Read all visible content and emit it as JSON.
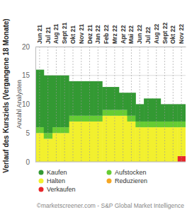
{
  "chart_data": {
    "type": "area",
    "title": "Verlauf des Kursziels (Vergangene 18 Monate)",
    "y_label": "Anzahl Analysten",
    "source": "©marketscreener.com - S&P Global Market Intelligence",
    "categories": [
      "Jun 21",
      "Jul 21",
      "Aug 21",
      "Sept 21",
      "Okt 21",
      "Nov 21",
      "Dez 21",
      "Jan 22",
      "Feb 22",
      "Mrz 22",
      "Apr 22",
      "Mai 22",
      "Jun 22",
      "Jul 22",
      "Aug 22",
      "Sept 22",
      "Okt 22",
      "Nov 22"
    ],
    "series": [
      {
        "name": "Verkaufen",
        "color": "#e8262a",
        "values": [
          0,
          0,
          0,
          0,
          0,
          0,
          0,
          0,
          0,
          0,
          0,
          0,
          0,
          0,
          0,
          0,
          0,
          1
        ]
      },
      {
        "name": "Reduzieren",
        "color": "#f5a623",
        "values": [
          0,
          0,
          0,
          0,
          0,
          0,
          0,
          0,
          0,
          0,
          0,
          0,
          0,
          0,
          0,
          0,
          0,
          0
        ]
      },
      {
        "name": "Halten",
        "color": "#f2f02e",
        "values": [
          5,
          4,
          5,
          5,
          7,
          7,
          7,
          7,
          8,
          8,
          8,
          7,
          6,
          6,
          6,
          6,
          6,
          5
        ]
      },
      {
        "name": "Aufstocken",
        "color": "#66cc33",
        "values": [
          1,
          1,
          1,
          1,
          1,
          1,
          1,
          1,
          1,
          1,
          1,
          1,
          1,
          1,
          1,
          1,
          1,
          1
        ]
      },
      {
        "name": "Kaufen",
        "color": "#339933",
        "values": [
          10,
          10,
          9,
          9,
          6,
          6,
          6,
          6,
          4,
          4,
          3,
          4,
          3,
          4,
          4,
          3,
          3,
          3
        ]
      }
    ],
    "stacked": true,
    "grid": true,
    "legend": "bottom",
    "ylim": [
      0,
      20
    ],
    "yticks": [
      0,
      5,
      10,
      15,
      20
    ]
  }
}
